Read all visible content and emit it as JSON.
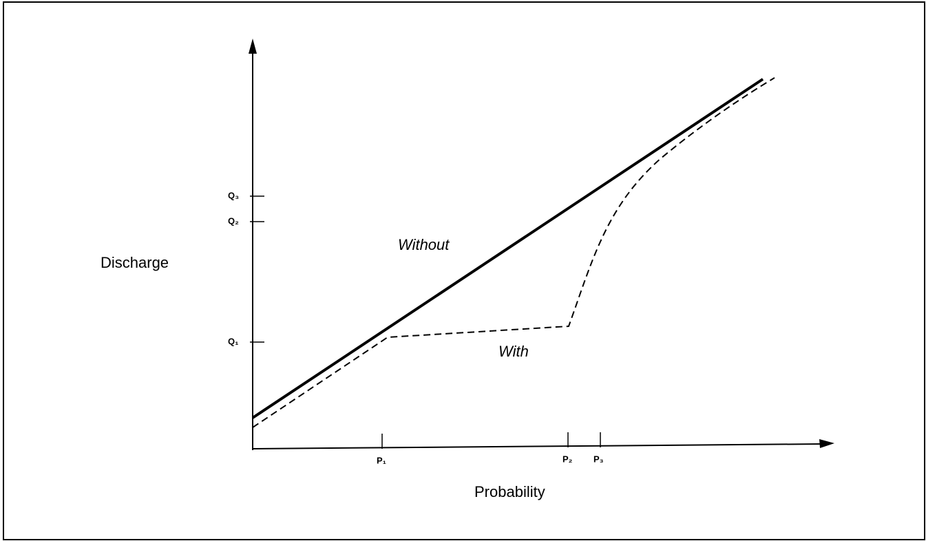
{
  "axes": {
    "y_label": "Discharge",
    "x_label": "Probability",
    "y_ticks": [
      "Q₁",
      "Q₂",
      "Q₃"
    ],
    "x_ticks": [
      "P₁",
      "P₂",
      "P₃"
    ]
  },
  "curves": {
    "without": "Without",
    "with": "With"
  }
}
